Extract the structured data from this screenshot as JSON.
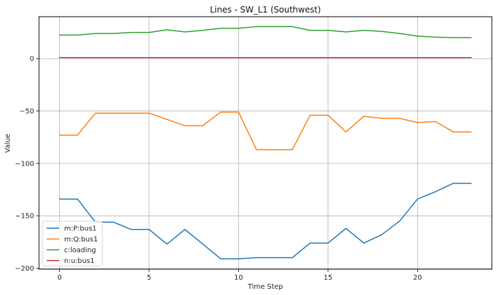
{
  "chart_data": {
    "type": "line",
    "title": "Lines - SW_L1 (Southwest)",
    "xlabel": "Time Step",
    "ylabel": "Value",
    "x": [
      0,
      1,
      2,
      3,
      4,
      5,
      6,
      7,
      8,
      9,
      10,
      11,
      12,
      13,
      14,
      15,
      16,
      17,
      18,
      19,
      20,
      21,
      22,
      23
    ],
    "xlim": [
      -1.15,
      24.15
    ],
    "ylim": [
      -201,
      40
    ],
    "xticks": [
      0,
      5,
      10,
      15,
      20
    ],
    "yticks": [
      -200,
      -150,
      -100,
      -50,
      0
    ],
    "grid": true,
    "legend_position": "lower-left",
    "series": [
      {
        "name": "m:P:bus1",
        "color": "#1f77b4",
        "values": [
          -134,
          -134,
          -156,
          -156,
          -163,
          -163,
          -177,
          -163,
          -177,
          -191,
          -191,
          -190,
          -190,
          -190,
          -176,
          -176,
          -162,
          -176,
          -168,
          -155,
          -134,
          -127,
          -119,
          -119
        ]
      },
      {
        "name": "m:Q:bus1",
        "color": "#ff7f0e",
        "values": [
          -73,
          -73,
          -52,
          -52,
          -52,
          -52,
          -58,
          -64,
          -64,
          -51,
          -51,
          -87,
          -87,
          -87,
          -54,
          -54,
          -70,
          -55,
          -57,
          -57,
          -61,
          -60,
          -70,
          -70
        ]
      },
      {
        "name": "c:loading",
        "color": "#2ca02c",
        "values": [
          22.5,
          22.5,
          24,
          24,
          25,
          25,
          27.5,
          25.5,
          27,
          29,
          29,
          30.5,
          30.5,
          30.5,
          27,
          27,
          25.5,
          27,
          26,
          24,
          21.5,
          20.5,
          20,
          20
        ]
      },
      {
        "name": "n:u:bus1",
        "color": "#d62728",
        "values": [
          1,
          1,
          1,
          1,
          1,
          1,
          1,
          1,
          1,
          1,
          1,
          1,
          1,
          1,
          1,
          1,
          1,
          1,
          1,
          1,
          1,
          1,
          1,
          1
        ]
      }
    ]
  }
}
